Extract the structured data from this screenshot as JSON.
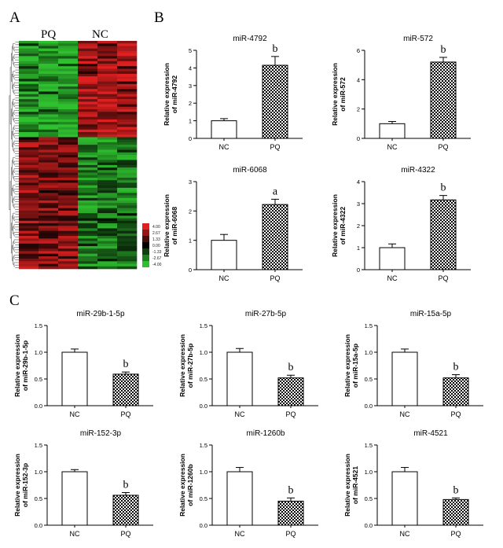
{
  "panels": {
    "a": "A",
    "b": "B",
    "c": "C"
  },
  "heatmap": {
    "group_labels": [
      "PQ",
      "NC"
    ],
    "scale_ticks": [
      "4.00",
      "2.67",
      "1.33",
      "0.00",
      "-1.33",
      "-2.67",
      "-4.00"
    ],
    "colors": {
      "high": "#e02020",
      "mid": "#000000",
      "low": "#2fc02f"
    }
  },
  "chart_data": [
    {
      "type": "bar",
      "title": "miR-4792",
      "categories": [
        "NC",
        "PQ"
      ],
      "values": [
        1.0,
        4.15
      ],
      "errors": [
        0.12,
        0.5
      ],
      "significance": [
        "",
        "b"
      ],
      "ylabel": "Relative expression of miR-4792",
      "ylim": [
        0,
        5
      ],
      "yticks": [
        0,
        1,
        2,
        3,
        4,
        5
      ]
    },
    {
      "type": "bar",
      "title": "miR-572",
      "categories": [
        "NC",
        "PQ"
      ],
      "values": [
        1.0,
        5.2
      ],
      "errors": [
        0.15,
        0.32
      ],
      "significance": [
        "",
        "b"
      ],
      "ylabel": "Relative expression of miR-572",
      "ylim": [
        0,
        6
      ],
      "yticks": [
        0,
        2,
        4,
        6
      ]
    },
    {
      "type": "bar",
      "title": "miR-6068",
      "categories": [
        "NC",
        "PQ"
      ],
      "values": [
        1.0,
        2.22
      ],
      "errors": [
        0.2,
        0.18
      ],
      "significance": [
        "",
        "a"
      ],
      "ylabel": "Relative expression of miR-6068",
      "ylim": [
        0,
        3
      ],
      "yticks": [
        0,
        1,
        2,
        3
      ]
    },
    {
      "type": "bar",
      "title": "miR-4322",
      "categories": [
        "NC",
        "PQ"
      ],
      "values": [
        1.0,
        3.17
      ],
      "errors": [
        0.17,
        0.2
      ],
      "significance": [
        "",
        "b"
      ],
      "ylabel": "Relative expression of miR-4322",
      "ylim": [
        0,
        4
      ],
      "yticks": [
        0,
        1,
        2,
        3,
        4
      ]
    },
    {
      "type": "bar",
      "title": "miR-29b-1-5p",
      "categories": [
        "NC",
        "PQ"
      ],
      "values": [
        1.0,
        0.59
      ],
      "errors": [
        0.06,
        0.04
      ],
      "significance": [
        "",
        "b"
      ],
      "ylabel": "Relative expression of miR-29b-1-5p",
      "ylim": [
        0,
        1.5
      ],
      "yticks": [
        0,
        0.5,
        1.0,
        1.5
      ]
    },
    {
      "type": "bar",
      "title": "miR-27b-5p",
      "categories": [
        "NC",
        "PQ"
      ],
      "values": [
        1.0,
        0.52
      ],
      "errors": [
        0.07,
        0.05
      ],
      "significance": [
        "",
        "b"
      ],
      "ylabel": "Relative expression of miR-27b-5p",
      "ylim": [
        0,
        1.5
      ],
      "yticks": [
        0,
        0.5,
        1.0,
        1.5
      ]
    },
    {
      "type": "bar",
      "title": "miR-15a-5p",
      "categories": [
        "NC",
        "PQ"
      ],
      "values": [
        1.0,
        0.52
      ],
      "errors": [
        0.06,
        0.06
      ],
      "significance": [
        "",
        "b"
      ],
      "ylabel": "Relative expression of miR-15a-5p",
      "ylim": [
        0,
        1.5
      ],
      "yticks": [
        0,
        0.5,
        1.0,
        1.5
      ]
    },
    {
      "type": "bar",
      "title": "miR-152-3p",
      "categories": [
        "NC",
        "PQ"
      ],
      "values": [
        1.0,
        0.56
      ],
      "errors": [
        0.04,
        0.05
      ],
      "significance": [
        "",
        "b"
      ],
      "ylabel": "Relative expression of miR-152-3p",
      "ylim": [
        0,
        1.5
      ],
      "yticks": [
        0,
        0.5,
        1.0,
        1.5
      ]
    },
    {
      "type": "bar",
      "title": "miR-1260b",
      "categories": [
        "NC",
        "PQ"
      ],
      "values": [
        1.0,
        0.45
      ],
      "errors": [
        0.08,
        0.06
      ],
      "significance": [
        "",
        "b"
      ],
      "ylabel": "Relative expression of miR-1260b",
      "ylim": [
        0,
        1.5
      ],
      "yticks": [
        0,
        0.5,
        1.0,
        1.5
      ]
    },
    {
      "type": "bar",
      "title": "miR-4521",
      "categories": [
        "NC",
        "PQ"
      ],
      "values": [
        1.0,
        0.48
      ],
      "errors": [
        0.08,
        0.03
      ],
      "significance": [
        "",
        "b"
      ],
      "ylabel": "Relative expression of miR-4521",
      "ylim": [
        0,
        1.5
      ],
      "yticks": [
        0,
        0.5,
        1.0,
        1.5
      ]
    }
  ]
}
